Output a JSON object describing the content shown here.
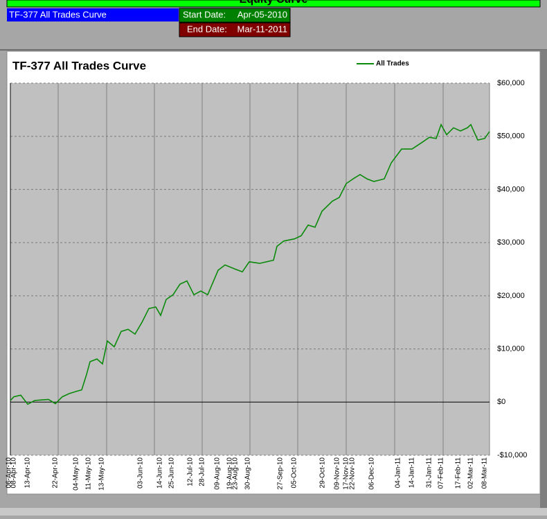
{
  "header": {
    "banner": "Equity Curve",
    "sheet_title": "TF-377 All Trades Curve",
    "start_label": "Start Date:",
    "start_value": "Apr-05-2010",
    "end_label": "End Date:",
    "end_value": "Mar-11-2011"
  },
  "chart_data": {
    "type": "line",
    "title": "TF-377 All Trades Curve",
    "legend": "top",
    "grid": true,
    "x": [
      0,
      5,
      15,
      25,
      35,
      45,
      55,
      65,
      75,
      85,
      95,
      103,
      110,
      115,
      125,
      133,
      140,
      150,
      160,
      170,
      180,
      190,
      200,
      210,
      217,
      225,
      235,
      245,
      255,
      265,
      275,
      285,
      300,
      310,
      325,
      335,
      345,
      360,
      370,
      380,
      385,
      395,
      410,
      420,
      430,
      440,
      450,
      465,
      475,
      485,
      495,
      505,
      515,
      525,
      540,
      550,
      565,
      580,
      595,
      605,
      615,
      622,
      630,
      640,
      650,
      660,
      665,
      675,
      685,
      692
    ],
    "series": [
      {
        "name": "All Trades",
        "color": "#0a8a0a",
        "values": [
          300,
          1000,
          1300,
          -400,
          300,
          400,
          500,
          -300,
          1000,
          1600,
          2000,
          2300,
          5200,
          7600,
          8100,
          7200,
          11500,
          10400,
          13300,
          13700,
          12800,
          15000,
          17600,
          17900,
          16300,
          19300,
          20200,
          22200,
          22800,
          20200,
          20900,
          20200,
          24800,
          25800,
          25000,
          24500,
          26400,
          26100,
          26400,
          26700,
          29300,
          30300,
          30700,
          31300,
          33300,
          32900,
          35900,
          37800,
          38500,
          41100,
          42000,
          42800,
          42000,
          41500,
          42000,
          45000,
          47600,
          47600,
          48900,
          49800,
          49600,
          52200,
          50300,
          51600,
          51000,
          51600,
          52200,
          49300,
          49600,
          50900
        ]
      }
    ],
    "xlim": [
      0,
      692
    ],
    "xgrid": [
      0,
      69,
      139,
      208,
      277,
      346,
      415,
      485,
      555,
      625,
      692
    ],
    "xticks": [
      {
        "value": -2,
        "label": "06-Apr-10"
      },
      {
        "value": 5,
        "label": "08-Apr-10"
      },
      {
        "value": 25,
        "label": "13-Apr-10"
      },
      {
        "value": 65,
        "label": "22-Apr-10"
      },
      {
        "value": 95,
        "label": "04-May-10"
      },
      {
        "value": 113,
        "label": "11-May-10"
      },
      {
        "value": 132,
        "label": "13-May-10"
      },
      {
        "value": 188,
        "label": "03-Jun-10"
      },
      {
        "value": 216,
        "label": "14-Jun-10"
      },
      {
        "value": 233,
        "label": "25-Jun-10"
      },
      {
        "value": 260,
        "label": "12-Jul-10"
      },
      {
        "value": 277,
        "label": "28-Jul-10"
      },
      {
        "value": 299,
        "label": "09-Aug-10"
      },
      {
        "value": 317,
        "label": "19-Aug-10"
      },
      {
        "value": 325,
        "label": "23-Aug-10"
      },
      {
        "value": 343,
        "label": "30-Aug-10"
      },
      {
        "value": 390,
        "label": "27-Sep-10"
      },
      {
        "value": 410,
        "label": "05-Oct-10"
      },
      {
        "value": 451,
        "label": "29-Oct-10"
      },
      {
        "value": 472,
        "label": "09-Nov-10"
      },
      {
        "value": 485,
        "label": "17-Nov-10"
      },
      {
        "value": 494,
        "label": "22-Nov-10"
      },
      {
        "value": 522,
        "label": "06-Dec-10"
      },
      {
        "value": 560,
        "label": "04-Jan-11"
      },
      {
        "value": 580,
        "label": "14-Jan-11"
      },
      {
        "value": 605,
        "label": "31-Jan-11"
      },
      {
        "value": 622,
        "label": "07-Feb-11"
      },
      {
        "value": 647,
        "label": "17-Feb-11"
      },
      {
        "value": 665,
        "label": "02-Mar-11"
      },
      {
        "value": 685,
        "label": "08-Mar-11"
      }
    ],
    "ylim": [
      -10000,
      60000
    ],
    "yticks": [
      {
        "value": 60000,
        "label": "$60,000"
      },
      {
        "value": 50000,
        "label": "$50,000"
      },
      {
        "value": 40000,
        "label": "$40,000"
      },
      {
        "value": 30000,
        "label": "$30,000"
      },
      {
        "value": 20000,
        "label": "$20,000"
      },
      {
        "value": 10000,
        "label": "$10,000"
      },
      {
        "value": 0,
        "label": "$0"
      },
      {
        "value": -10000,
        "label": "-$10,000"
      }
    ]
  }
}
